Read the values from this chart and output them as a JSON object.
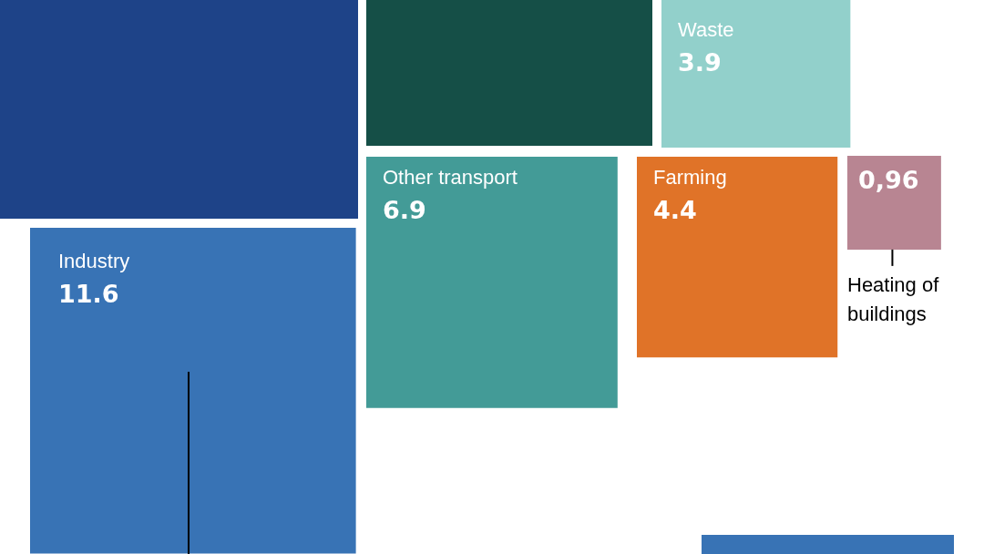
{
  "chart_data": {
    "type": "other",
    "categories": [
      null,
      null,
      "Waste",
      "Other transport",
      "Farming",
      "Heating of buildings",
      "Industry",
      null
    ],
    "values": [
      null,
      null,
      3.9,
      6.9,
      4.4,
      0.96,
      11.6,
      null
    ],
    "value_labels": [
      null,
      null,
      "3.9",
      "6.9",
      "4.4",
      "0,96",
      "11.6",
      null
    ],
    "colors": [
      "#1e4388",
      "#154f47",
      "#92d0cb",
      "#439b97",
      "#e07328",
      "#b88592",
      "#3873b5",
      "#3873b5"
    ]
  }
}
